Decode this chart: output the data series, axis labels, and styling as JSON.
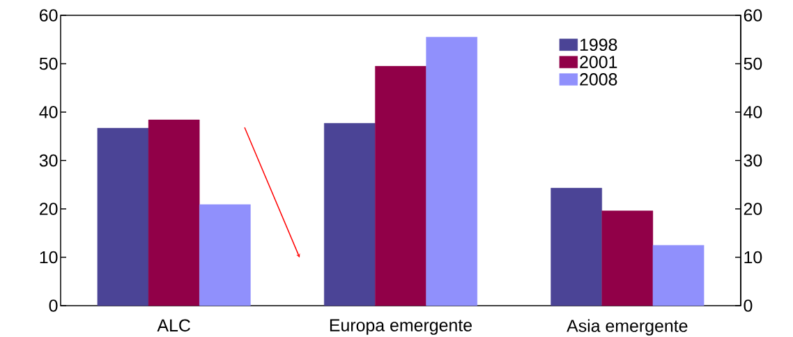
{
  "chart_data": {
    "type": "bar",
    "categories": [
      "ALC",
      "Europa emergente",
      "Asia emergente"
    ],
    "series": [
      {
        "name": "1998",
        "color": "#4b4496",
        "values": [
          36.7,
          37.7,
          24.3
        ]
      },
      {
        "name": "2001",
        "color": "#910048",
        "values": [
          38.4,
          49.5,
          19.6
        ]
      },
      {
        "name": "2008",
        "color": "#9090fc",
        "values": [
          20.9,
          55.5,
          12.5
        ]
      }
    ],
    "ylim": [
      0,
      60
    ],
    "yticks": [
      0,
      10,
      20,
      30,
      40,
      50,
      60
    ],
    "y2lim": [
      0,
      60
    ],
    "y2ticks": [
      0,
      10,
      20,
      30,
      40,
      50,
      60
    ],
    "grid": false,
    "legend": "top right"
  }
}
